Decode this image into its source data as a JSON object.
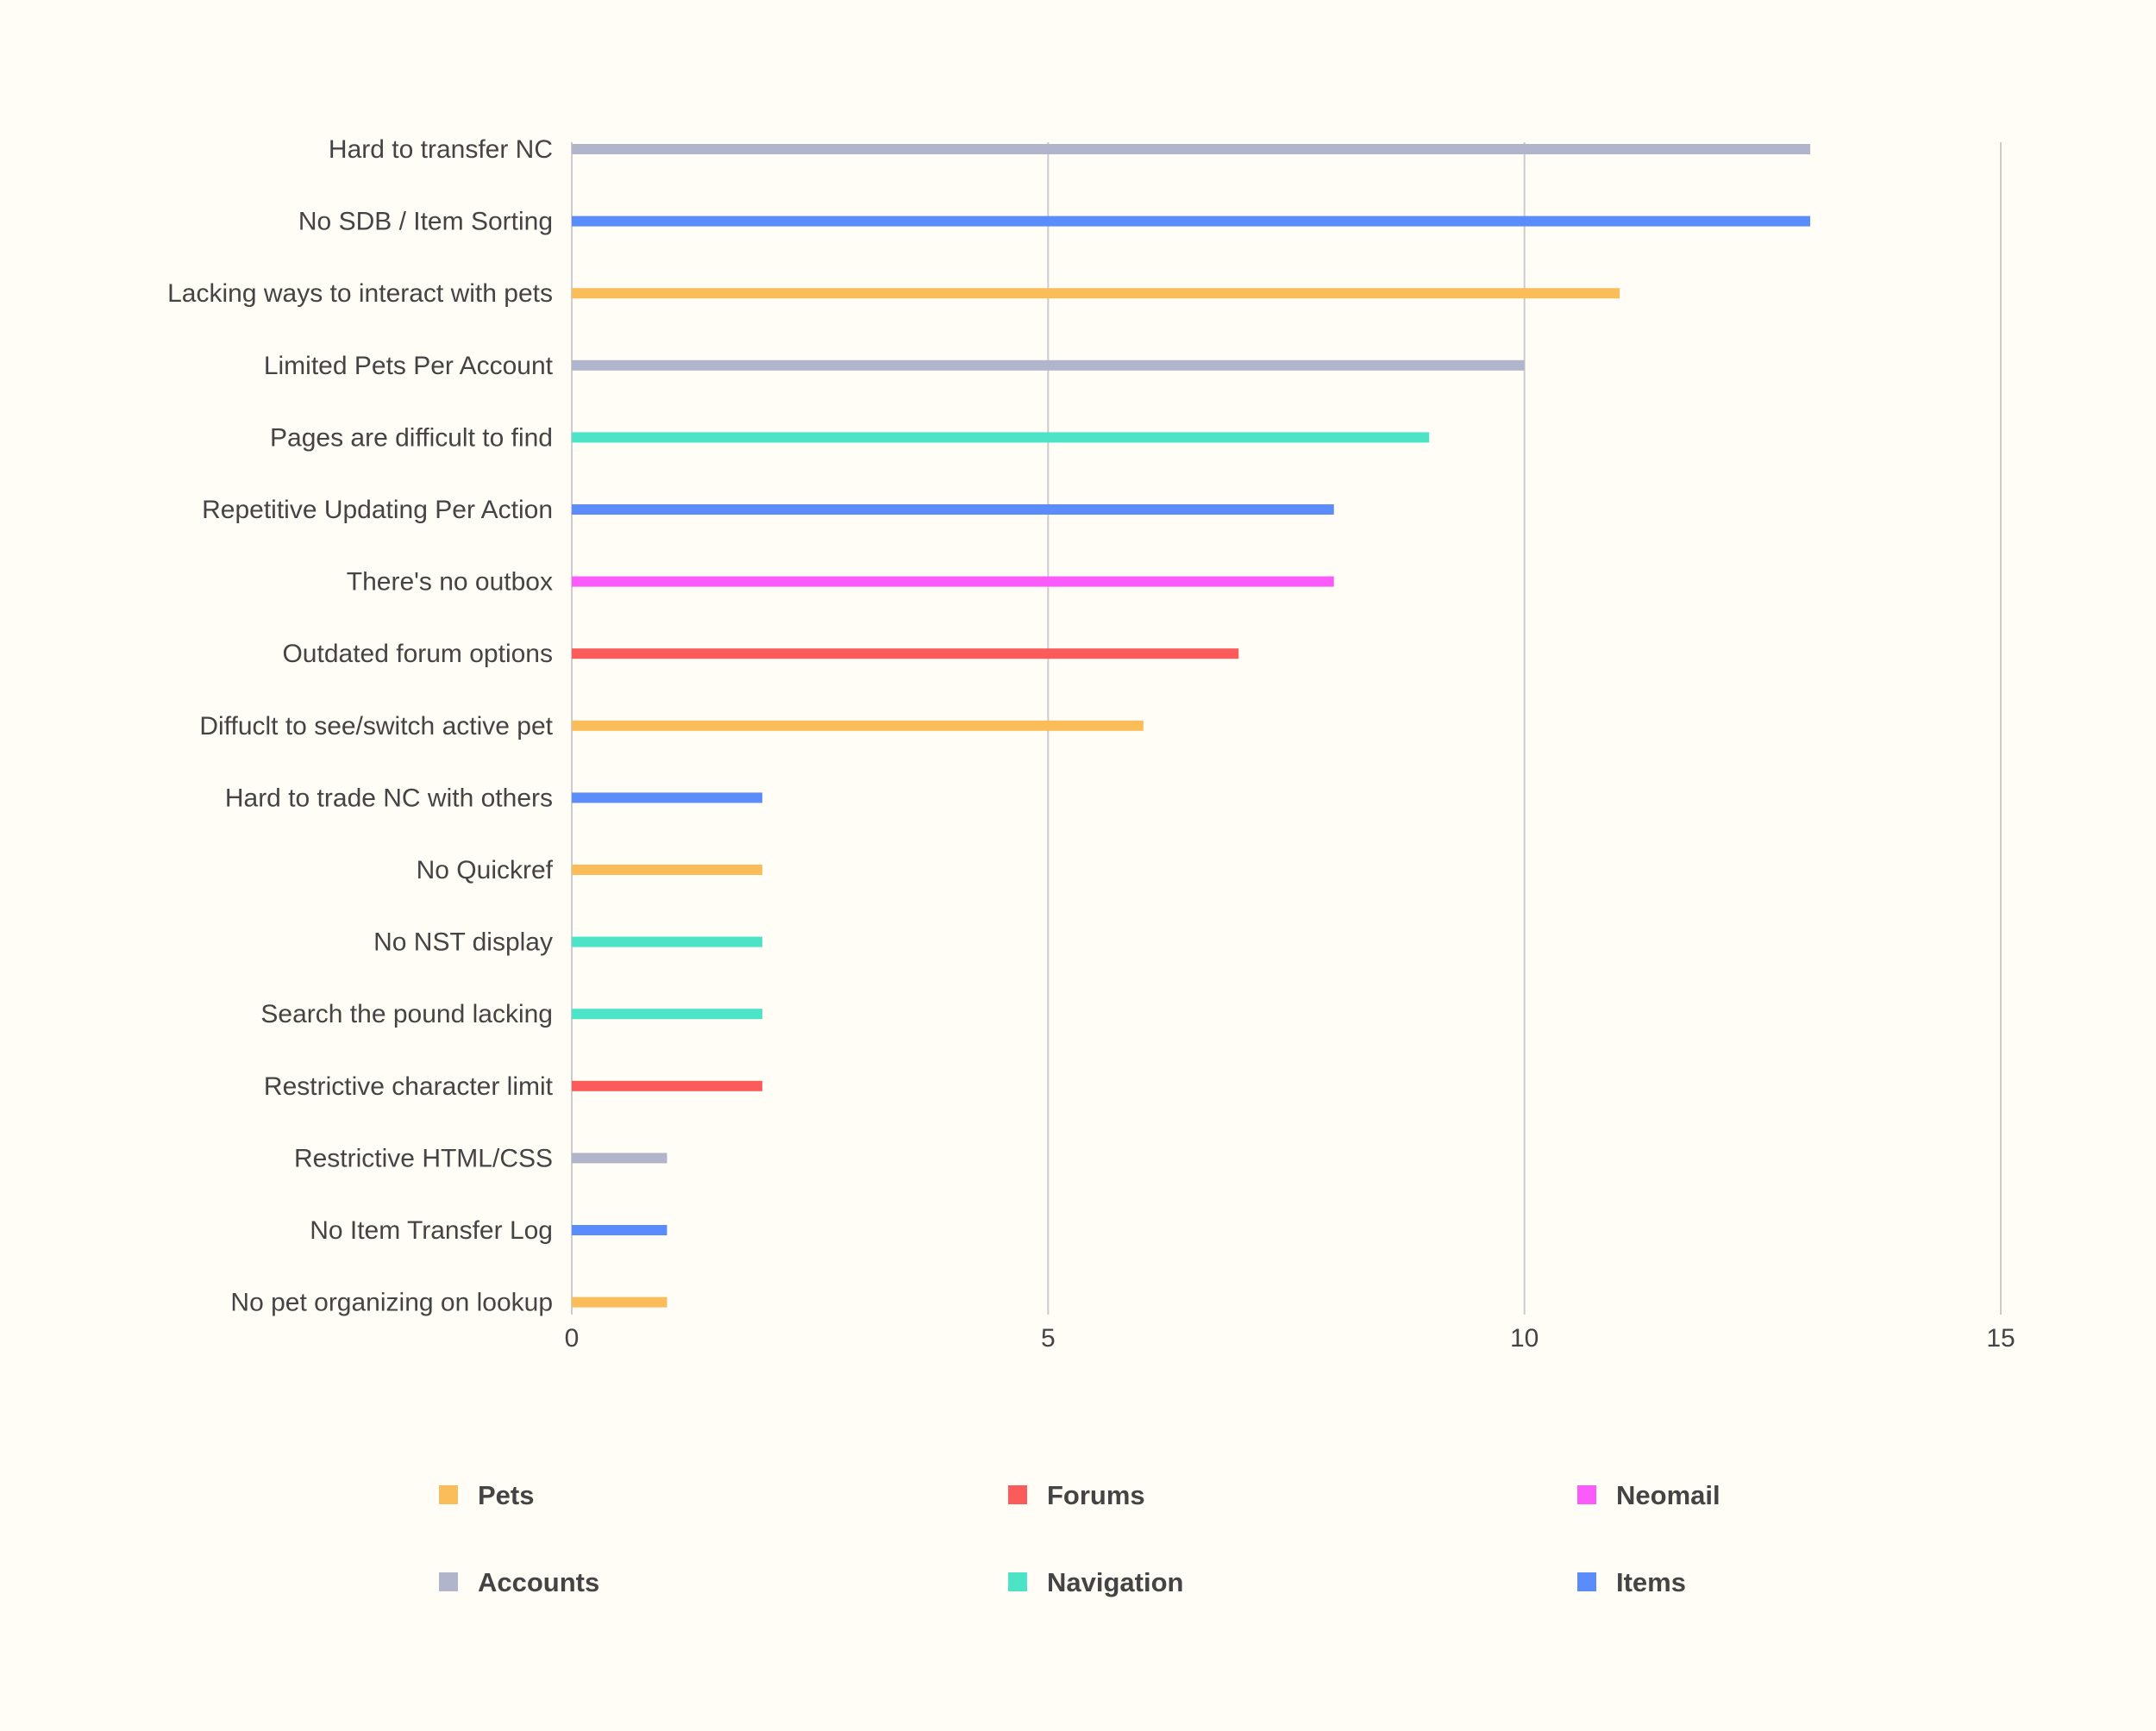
{
  "chart_data": {
    "type": "bar",
    "orientation": "horizontal",
    "title": "",
    "xlabel": "",
    "ylabel": "",
    "xlim": [
      0,
      15
    ],
    "x_ticks": [
      0,
      5,
      10,
      15
    ],
    "grid": true,
    "legend_position": "bottom",
    "categories": [
      "Hard to transfer NC",
      "No SDB / Item Sorting",
      "Lacking ways to interact with pets",
      "Limited Pets Per Account",
      "Pages are difficult to find",
      "Repetitive Updating Per Action",
      "There's no outbox",
      "Outdated forum options",
      "Diffuclt to see/switch active pet",
      "Hard to trade NC with others",
      "No Quickref",
      "No NST display",
      "Search the pound lacking",
      "Restrictive character limit",
      "Restrictive HTML/CSS",
      "No Item Transfer Log",
      "No pet organizing on lookup"
    ],
    "values": [
      13,
      13,
      11,
      10,
      9,
      8,
      8,
      7,
      6,
      2,
      2,
      2,
      2,
      2,
      1,
      1,
      1
    ],
    "bar_series": [
      "Accounts",
      "Items",
      "Pets",
      "Accounts",
      "Navigation",
      "Items",
      "Neomail",
      "Forums",
      "Pets",
      "Items",
      "Pets",
      "Navigation",
      "Navigation",
      "Forums",
      "Accounts",
      "Items",
      "Pets"
    ],
    "legend": [
      {
        "name": "Pets",
        "color": "#fbbd5a"
      },
      {
        "name": "Forums",
        "color": "#fb5b5b"
      },
      {
        "name": "Neomail",
        "color": "#fb5bfb"
      },
      {
        "name": "Accounts",
        "color": "#b0b5cc"
      },
      {
        "name": "Navigation",
        "color": "#4de3c7"
      },
      {
        "name": "Items",
        "color": "#5b8cfb"
      }
    ]
  }
}
